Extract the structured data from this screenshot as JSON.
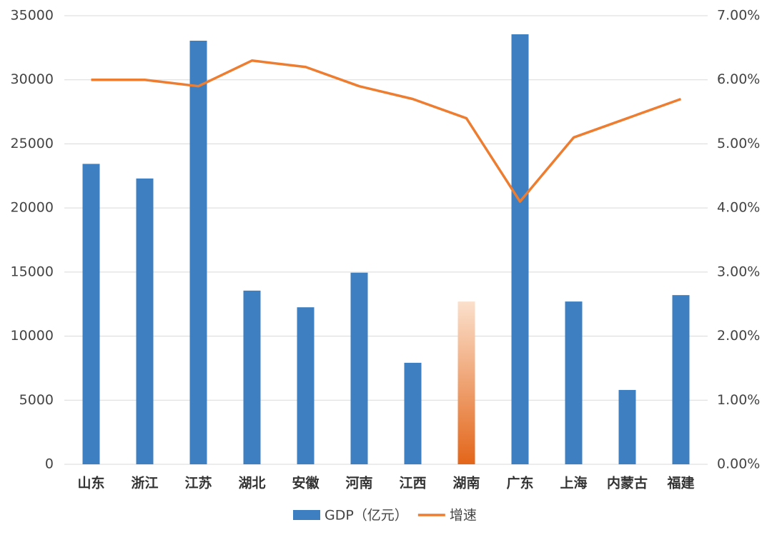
{
  "chart_data": {
    "type": "bar-line",
    "categories": [
      "山东",
      "浙江",
      "江苏",
      "湖北",
      "安徽",
      "河南",
      "江西",
      "湖南",
      "广东",
      "上海",
      "内蒙古",
      "福建"
    ],
    "series": [
      {
        "name": "GDP（亿元）",
        "type": "bar",
        "color": "#3d7fc1",
        "values": [
          23440,
          22300,
          33050,
          13550,
          12250,
          14950,
          7920,
          12700,
          33550,
          12700,
          5800,
          13200
        ]
      },
      {
        "name": "增速",
        "type": "line",
        "axis": "y2",
        "color": "#ed7d31",
        "values": [
          6.0,
          6.0,
          5.9,
          6.3,
          6.2,
          5.9,
          5.7,
          5.4,
          4.1,
          5.1,
          5.4,
          5.7
        ]
      }
    ],
    "highlight_index": 7,
    "highlight_colors": [
      "#fbe0cc",
      "#e3661a"
    ],
    "ylim": [
      0,
      35000
    ],
    "yticks": [
      0,
      5000,
      10000,
      15000,
      20000,
      25000,
      30000,
      35000
    ],
    "y2lim": [
      0,
      7
    ],
    "y2ticks": [
      {
        "value": 0,
        "label": "0.00%"
      },
      {
        "value": 1,
        "label": "1.00%"
      },
      {
        "value": 2,
        "label": "2.00%"
      },
      {
        "value": 3,
        "label": "3.00%"
      },
      {
        "value": 4,
        "label": "4.00%"
      },
      {
        "value": 5,
        "label": "5.00%"
      },
      {
        "value": 6,
        "label": "6.00%"
      },
      {
        "value": 7,
        "label": "7.00%"
      }
    ],
    "grid": true,
    "legend": "bottom"
  }
}
